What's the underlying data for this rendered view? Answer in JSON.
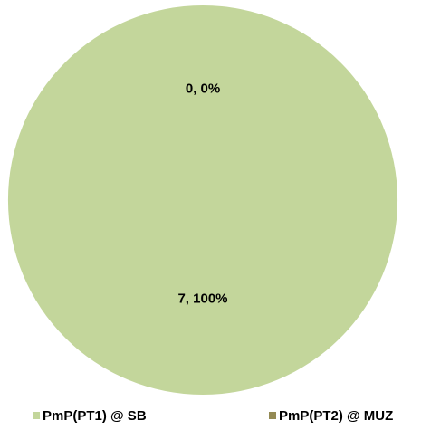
{
  "chart_data": {
    "type": "pie",
    "categories": [
      "PmP(PT1) @ SB",
      "PmP(PT2) @ MUZ"
    ],
    "values": [
      7,
      0
    ],
    "value_labels": [
      "7, 100%",
      "0, 0%"
    ],
    "colors": [
      "#c3d69b",
      "#948a54"
    ],
    "legend": "bottom"
  }
}
